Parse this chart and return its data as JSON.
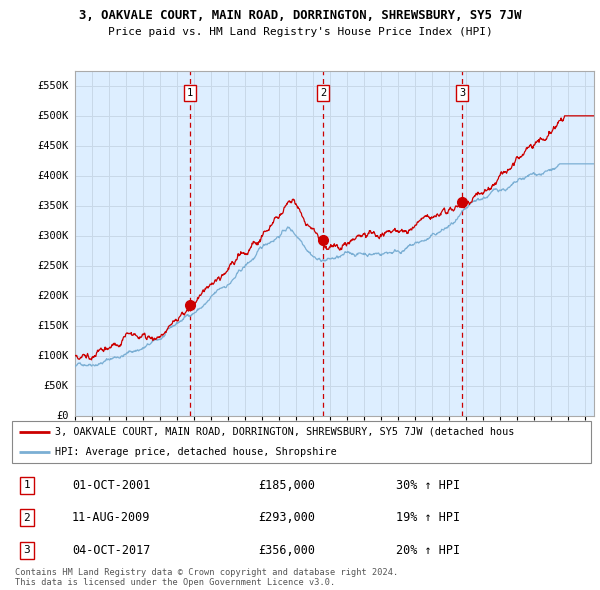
{
  "title": "3, OAKVALE COURT, MAIN ROAD, DORRINGTON, SHREWSBURY, SY5 7JW",
  "subtitle": "Price paid vs. HM Land Registry's House Price Index (HPI)",
  "xlim_start": 1995,
  "xlim_end": 2025.5,
  "ylim": [
    0,
    575000
  ],
  "yticks": [
    0,
    50000,
    100000,
    150000,
    200000,
    250000,
    300000,
    350000,
    400000,
    450000,
    500000,
    550000
  ],
  "ytick_labels": [
    "£0",
    "£50K",
    "£100K",
    "£150K",
    "£200K",
    "£250K",
    "£300K",
    "£350K",
    "£400K",
    "£450K",
    "£500K",
    "£550K"
  ],
  "sale_dates": [
    2001.75,
    2009.6,
    2017.75
  ],
  "sale_prices": [
    185000,
    293000,
    356000
  ],
  "sale_labels": [
    "1",
    "2",
    "3"
  ],
  "hpi_line_color": "#7bafd4",
  "price_line_color": "#cc0000",
  "vline_color": "#cc0000",
  "grid_color": "#c8d8e8",
  "bg_color": "#ddeeff",
  "legend_line1": "3, OAKVALE COURT, MAIN ROAD, DORRINGTON, SHREWSBURY, SY5 7JW (detached hous",
  "legend_line2": "HPI: Average price, detached house, Shropshire",
  "table_rows": [
    [
      "1",
      "01-OCT-2001",
      "£185,000",
      "30% ↑ HPI"
    ],
    [
      "2",
      "11-AUG-2009",
      "£293,000",
      "19% ↑ HPI"
    ],
    [
      "3",
      "04-OCT-2017",
      "£356,000",
      "20% ↑ HPI"
    ]
  ],
  "footer": "Contains HM Land Registry data © Crown copyright and database right 2024.\nThis data is licensed under the Open Government Licence v3.0."
}
